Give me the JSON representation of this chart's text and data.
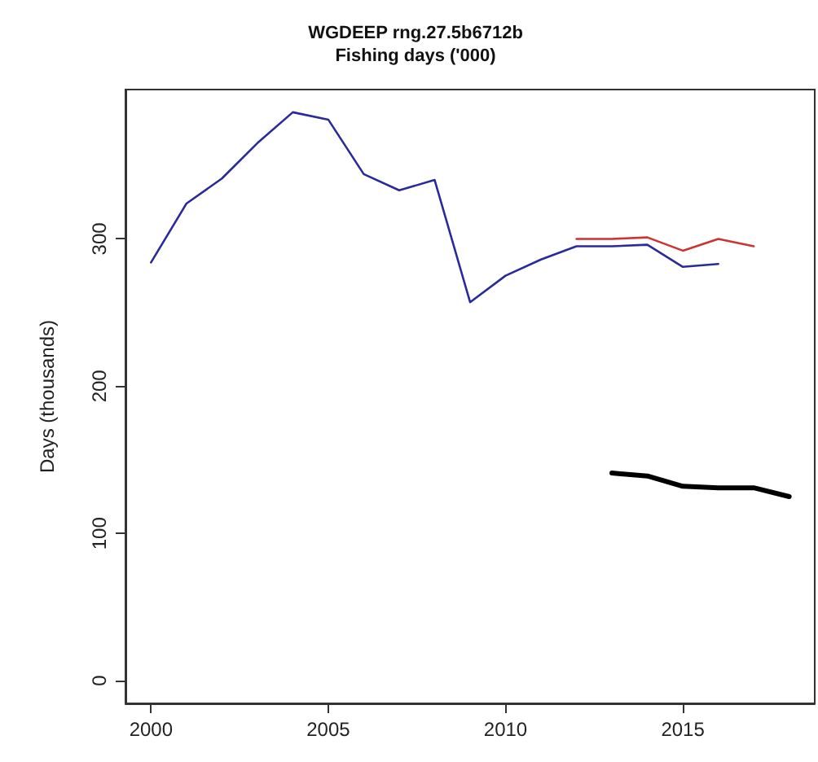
{
  "chart_data": {
    "type": "line",
    "title": "WGDEEP rng.27.5b6712b",
    "subtitle": "Fishing days ('000)",
    "ylabel": "Days (thousands)",
    "xlim": [
      1999.28,
      2018.72
    ],
    "xticks": [
      2000,
      2005,
      2010,
      2015
    ],
    "ylim": [
      -15.4,
      401.4
    ],
    "yticks": [
      0,
      100,
      200,
      300
    ],
    "grid": false,
    "marker": "none",
    "line_style": "solid",
    "series": [
      {
        "color": "#2a2a9a",
        "x": [
          2000,
          2001,
          2002,
          2003,
          2004,
          2005,
          2006,
          2007,
          2008,
          2009,
          2010,
          2011,
          2012,
          2013,
          2014,
          2015,
          2016
        ],
        "values": [
          284,
          324,
          341,
          365,
          386,
          381,
          344,
          333,
          340,
          257,
          275,
          286,
          295,
          295,
          296,
          281,
          283
        ]
      },
      {
        "color": "#cc3333",
        "x": [
          2012,
          2013,
          2014,
          2015,
          2016,
          2017
        ],
        "values": [
          300,
          300,
          301,
          292,
          300,
          295
        ]
      },
      {
        "color": "#000000",
        "x": [
          2013,
          2014,
          2015,
          2016,
          2017,
          2018
        ],
        "values": [
          141,
          139,
          132,
          131,
          131,
          125
        ]
      }
    ]
  }
}
